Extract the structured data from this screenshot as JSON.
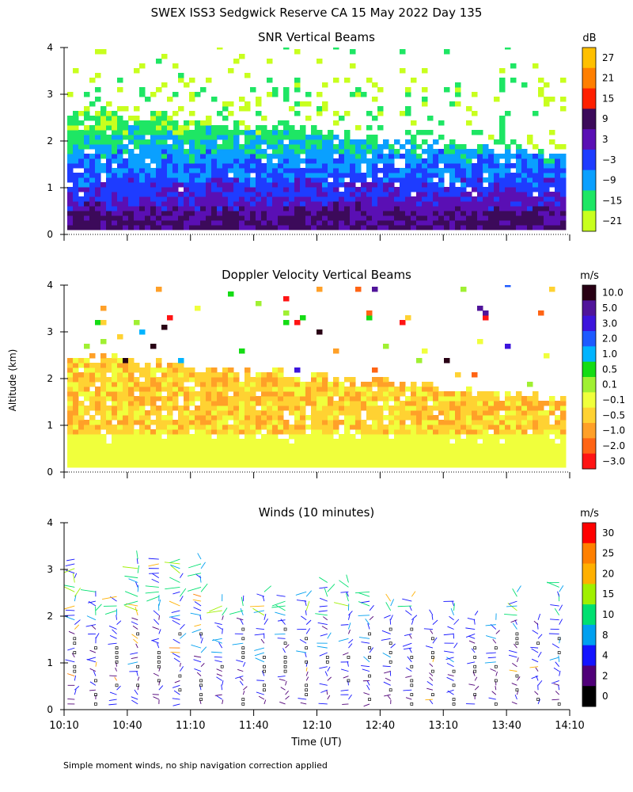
{
  "title": "SWEX ISS3 Sedgwick Reserve CA  15 May 2022 Day 135",
  "ylabel": "Altitude (km)",
  "xlabel": "Time (UT)",
  "footnote": "Simple moment winds, no ship navigation correction applied",
  "colors": {
    "background": "#ffffff",
    "axis": "#000000",
    "missing": "#ffffff"
  },
  "chart_data": [
    {
      "type": "heatmap",
      "title": "SNR Vertical Beams",
      "colorbar_unit": "dB",
      "colorbar_labels": [
        "27",
        "21",
        "15",
        "9",
        "3",
        "−3",
        "−9",
        "−15",
        "−21"
      ],
      "colorbar_colors": [
        "#ffc000",
        "#ff7f00",
        "#ff2000",
        "#3c0a5a",
        "#5a0fb4",
        "#1e3cff",
        "#0aa0ff",
        "#1ee664",
        "#c8ff1e"
      ],
      "x_ticks": [],
      "xlim_hours_ut": [
        10.1667,
        14.1667
      ],
      "ylim": [
        0,
        4
      ],
      "y_ticks": [
        "0",
        "1",
        "2",
        "3",
        "4"
      ],
      "description_levels": [
        {
          "alt_km": [
            0.1,
            0.4
          ],
          "snr_db": 9
        },
        {
          "alt_km": [
            0.4,
            1.0
          ],
          "snr_db": 0
        },
        {
          "alt_km": [
            1.0,
            2.0
          ],
          "snr_db": -12
        },
        {
          "alt_km": [
            2.0,
            2.6
          ],
          "snr_db": -18
        },
        {
          "alt_km": [
            2.6,
            4.0
          ],
          "snr_db": -21
        }
      ]
    },
    {
      "type": "heatmap",
      "title": "Doppler Velocity Vertical Beams",
      "colorbar_unit": "m/s",
      "colorbar_labels": [
        "10.0",
        "5.0",
        "3.0",
        "2.0",
        "1.0",
        "0.5",
        "0.1",
        "−0.1",
        "−0.5",
        "−1.0",
        "−2.0",
        "−3.0"
      ],
      "colorbar_colors": [
        "#280014",
        "#50149a",
        "#3c14dc",
        "#1e5aff",
        "#00b4ff",
        "#14dc14",
        "#a0f032",
        "#f0ff3c",
        "#ffd232",
        "#ffa028",
        "#ff6414",
        "#ff1414"
      ],
      "x_ticks": [],
      "xlim_hours_ut": [
        10.1667,
        14.1667
      ],
      "ylim": [
        0,
        4
      ],
      "y_ticks": [
        "0",
        "1",
        "2",
        "3",
        "4"
      ],
      "description_levels": [
        {
          "alt_km": [
            0.1,
            0.8
          ],
          "w_ms": -0.1
        },
        {
          "alt_km": [
            0.8,
            2.5
          ],
          "w_ms": -0.5
        }
      ]
    },
    {
      "type": "scatter",
      "title": "Winds (10 minutes)",
      "colorbar_unit": "m/s",
      "colorbar_labels": [
        "30",
        "25",
        "20",
        "15",
        "10",
        "8",
        "4",
        "2",
        "0"
      ],
      "colorbar_colors": [
        "#ff0000",
        "#ff8000",
        "#ffb000",
        "#a0f000",
        "#00e070",
        "#00a0f0",
        "#1414ff",
        "#500078",
        "#000000"
      ],
      "x_ticks": [
        "10:10",
        "10:40",
        "11:10",
        "11:40",
        "12:10",
        "12:40",
        "13:10",
        "13:40",
        "14:10"
      ],
      "x_tick_hours_ut": [
        10.1667,
        10.6667,
        11.1667,
        11.6667,
        12.1667,
        12.6667,
        13.1667,
        13.6667,
        14.1667
      ],
      "xlim_hours_ut": [
        10.1667,
        14.1667
      ],
      "ylim": [
        0,
        4
      ],
      "y_ticks": [
        "0",
        "1",
        "2",
        "3",
        "4"
      ],
      "profile_times_hours_ut": [
        10.25,
        10.4167,
        10.5833,
        10.75,
        10.9167,
        11.0833,
        11.25,
        11.4167,
        11.5833,
        11.75,
        11.9167,
        12.0833,
        12.25,
        12.4167,
        12.5833,
        12.75,
        12.9167,
        13.0833,
        13.25,
        13.4167,
        13.5833,
        13.75,
        13.9167,
        14.0833
      ],
      "profile_tops_km": [
        3.3,
        2.6,
        2.5,
        3.3,
        3.3,
        3.3,
        3.3,
        2.4,
        2.4,
        2.6,
        2.5,
        2.6,
        2.8,
        2.8,
        2.6,
        2.4,
        2.5,
        2.1,
        2.4,
        2.1,
        2.0,
        2.6,
        2.0,
        2.8
      ]
    }
  ]
}
